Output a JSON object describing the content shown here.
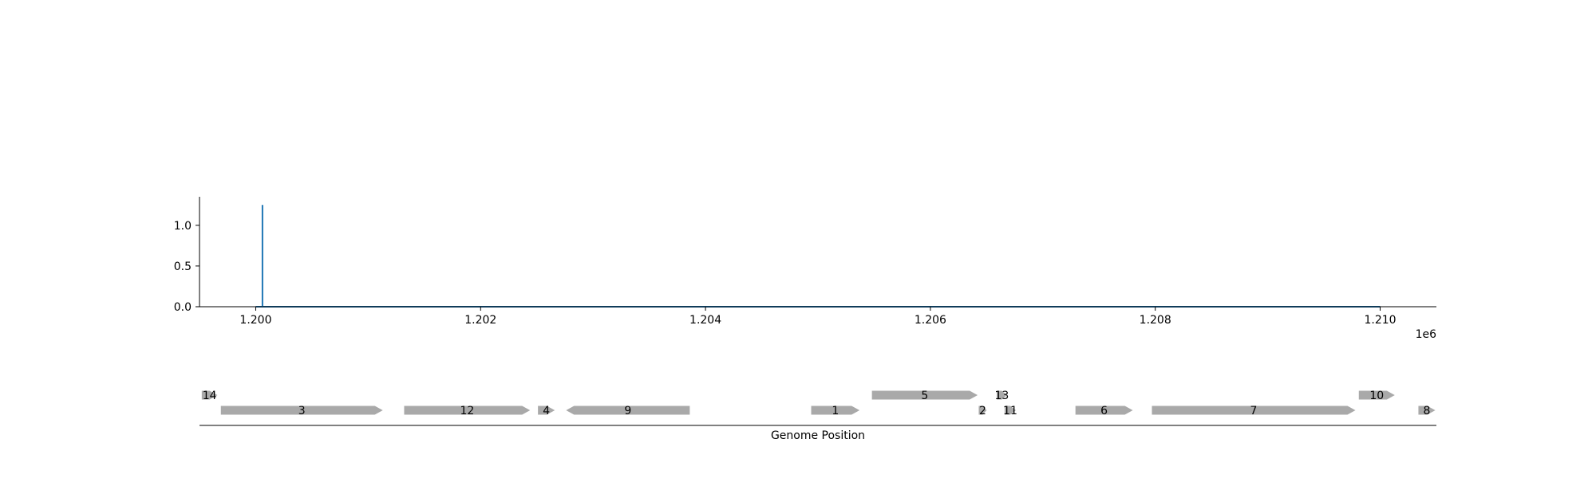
{
  "chart_data": [
    {
      "type": "line",
      "title": "",
      "xlabel": "",
      "ylabel": "",
      "x_offset_label": "1e6",
      "xlim": [
        1199500,
        1210500
      ],
      "ylim": [
        0,
        1.35
      ],
      "xticks": [
        1200000,
        1202000,
        1204000,
        1206000,
        1208000,
        1210000
      ],
      "xtick_labels": [
        "1.200",
        "1.202",
        "1.204",
        "1.206",
        "1.208",
        "1.210"
      ],
      "yticks": [
        0,
        0.5,
        1.0
      ],
      "ytick_labels": [
        "0.0",
        "0.5",
        "1.0"
      ],
      "grid": false,
      "series": [
        {
          "color": "#1f77b4",
          "x": [
            1200000,
            1200060,
            1200060,
            1200060,
            1200070,
            1210000
          ],
          "y": [
            0,
            0,
            1.25,
            0,
            0,
            0
          ]
        }
      ]
    },
    {
      "type": "gene_track",
      "xlabel": "Genome Position",
      "xlim": [
        1199500,
        1210500
      ],
      "color": "#a9a9a9",
      "genes": [
        {
          "label": "14",
          "start": 1199520,
          "end": 1199660,
          "strand": "+",
          "row": 1
        },
        {
          "label": "3",
          "start": 1199690,
          "end": 1201130,
          "strand": "+",
          "row": 0
        },
        {
          "label": "12",
          "start": 1201320,
          "end": 1202440,
          "strand": "+",
          "row": 0
        },
        {
          "label": "4",
          "start": 1202510,
          "end": 1202660,
          "strand": "+",
          "row": 0
        },
        {
          "label": "9",
          "start": 1202760,
          "end": 1203860,
          "strand": "-",
          "row": 0
        },
        {
          "label": "1",
          "start": 1204940,
          "end": 1205370,
          "strand": "+",
          "row": 0
        },
        {
          "label": "5",
          "start": 1205480,
          "end": 1206420,
          "strand": "+",
          "row": 1
        },
        {
          "label": "2",
          "start": 1206430,
          "end": 1206500,
          "strand": "+",
          "row": 0
        },
        {
          "label": "13",
          "start": 1206590,
          "end": 1206680,
          "strand": "+",
          "row": 1
        },
        {
          "label": "11",
          "start": 1206660,
          "end": 1206760,
          "strand": "+",
          "row": 0
        },
        {
          "label": "6",
          "start": 1207290,
          "end": 1207800,
          "strand": "+",
          "row": 0
        },
        {
          "label": "7",
          "start": 1207970,
          "end": 1209780,
          "strand": "+",
          "row": 0
        },
        {
          "label": "10",
          "start": 1209810,
          "end": 1210130,
          "strand": "+",
          "row": 1
        },
        {
          "label": "8",
          "start": 1210340,
          "end": 1210490,
          "strand": "+",
          "row": 0
        }
      ]
    }
  ]
}
